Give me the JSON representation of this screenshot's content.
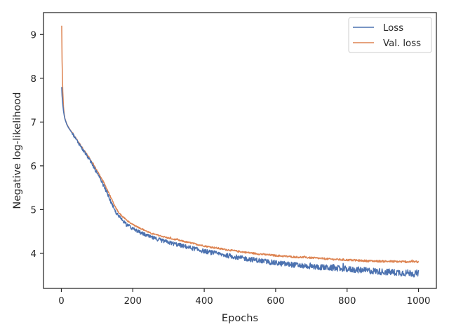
{
  "chart_data": {
    "type": "line",
    "title": "",
    "xlabel": "Epochs",
    "ylabel": "Negative log-likelihood",
    "xlim": [
      -50,
      1050
    ],
    "ylim": [
      3.2,
      9.5
    ],
    "xticks": [
      0,
      200,
      400,
      600,
      800,
      1000
    ],
    "yticks": [
      4,
      5,
      6,
      7,
      8,
      9
    ],
    "grid": false,
    "legend_position": "top-right",
    "series": [
      {
        "name": "Loss",
        "color": "#4c72b0",
        "noise": 0.05,
        "points": [
          [
            1,
            7.8
          ],
          [
            2,
            7.6
          ],
          [
            4,
            7.4
          ],
          [
            6,
            7.25
          ],
          [
            8,
            7.15
          ],
          [
            10,
            7.07
          ],
          [
            15,
            6.95
          ],
          [
            20,
            6.87
          ],
          [
            30,
            6.75
          ],
          [
            40,
            6.62
          ],
          [
            50,
            6.5
          ],
          [
            60,
            6.37
          ],
          [
            70,
            6.25
          ],
          [
            80,
            6.12
          ],
          [
            90,
            5.98
          ],
          [
            100,
            5.83
          ],
          [
            110,
            5.68
          ],
          [
            120,
            5.52
          ],
          [
            130,
            5.35
          ],
          [
            140,
            5.15
          ],
          [
            150,
            4.97
          ],
          [
            160,
            4.85
          ],
          [
            170,
            4.77
          ],
          [
            180,
            4.69
          ],
          [
            190,
            4.62
          ],
          [
            200,
            4.56
          ],
          [
            220,
            4.48
          ],
          [
            250,
            4.37
          ],
          [
            300,
            4.25
          ],
          [
            350,
            4.15
          ],
          [
            400,
            4.05
          ],
          [
            450,
            3.97
          ],
          [
            500,
            3.9
          ],
          [
            550,
            3.84
          ],
          [
            600,
            3.78
          ],
          [
            650,
            3.74
          ],
          [
            700,
            3.7
          ],
          [
            750,
            3.67
          ],
          [
            800,
            3.64
          ],
          [
            850,
            3.61
          ],
          [
            900,
            3.58
          ],
          [
            950,
            3.56
          ],
          [
            1000,
            3.54
          ]
        ]
      },
      {
        "name": "Val. loss",
        "color": "#dd8452",
        "noise": 0.02,
        "points": [
          [
            1,
            9.2
          ],
          [
            2,
            8.4
          ],
          [
            4,
            7.7
          ],
          [
            6,
            7.35
          ],
          [
            8,
            7.18
          ],
          [
            10,
            7.08
          ],
          [
            15,
            6.96
          ],
          [
            20,
            6.88
          ],
          [
            30,
            6.76
          ],
          [
            40,
            6.64
          ],
          [
            50,
            6.52
          ],
          [
            60,
            6.4
          ],
          [
            70,
            6.28
          ],
          [
            80,
            6.16
          ],
          [
            90,
            6.03
          ],
          [
            100,
            5.89
          ],
          [
            110,
            5.75
          ],
          [
            120,
            5.6
          ],
          [
            130,
            5.43
          ],
          [
            140,
            5.25
          ],
          [
            150,
            5.07
          ],
          [
            160,
            4.94
          ],
          [
            170,
            4.85
          ],
          [
            180,
            4.78
          ],
          [
            190,
            4.71
          ],
          [
            200,
            4.66
          ],
          [
            220,
            4.58
          ],
          [
            250,
            4.46
          ],
          [
            300,
            4.35
          ],
          [
            350,
            4.26
          ],
          [
            400,
            4.17
          ],
          [
            450,
            4.1
          ],
          [
            500,
            4.04
          ],
          [
            550,
            3.99
          ],
          [
            600,
            3.95
          ],
          [
            650,
            3.92
          ],
          [
            700,
            3.9
          ],
          [
            750,
            3.87
          ],
          [
            800,
            3.85
          ],
          [
            850,
            3.83
          ],
          [
            900,
            3.82
          ],
          [
            950,
            3.81
          ],
          [
            1000,
            3.81
          ]
        ]
      }
    ]
  }
}
